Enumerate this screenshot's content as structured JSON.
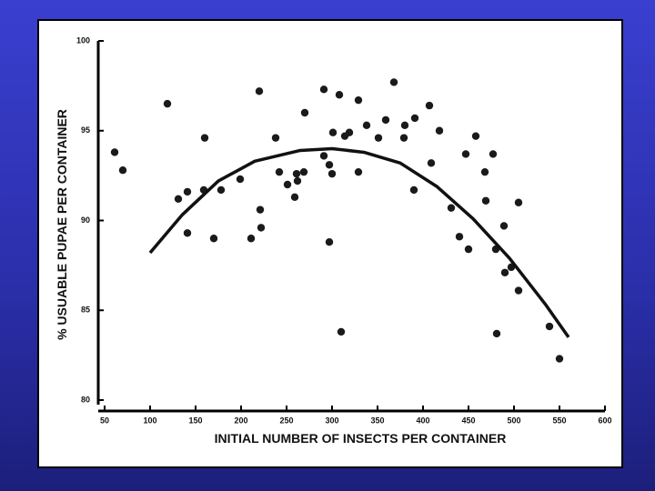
{
  "chart_data": {
    "type": "scatter",
    "x_label": "INITIAL NUMBER OF INSECTS PER CONTAINER",
    "y_label": "% USUABLE PUPAE PER CONTAINER",
    "xlim": [
      50,
      600
    ],
    "ylim": [
      80,
      100
    ],
    "xticks": [
      50,
      100,
      150,
      200,
      250,
      300,
      350,
      400,
      450,
      500,
      550,
      600
    ],
    "yticks": [
      80,
      85,
      90,
      95,
      100
    ],
    "series": [
      {
        "type": "scatter",
        "color": "#1a1a1a",
        "x": [
          61,
          70,
          119,
          131,
          141,
          141,
          159,
          160,
          170,
          178,
          199,
          211,
          220,
          221,
          222,
          238,
          242,
          251,
          259,
          261,
          262,
          269,
          270,
          291,
          291,
          297,
          300,
          297,
          301,
          308,
          310,
          314,
          319,
          329,
          329,
          338,
          351,
          359,
          368,
          379,
          380,
          391,
          390,
          407,
          409,
          418,
          431,
          440,
          447,
          450,
          458,
          468,
          469,
          477,
          480,
          481,
          489,
          490,
          497,
          505,
          505,
          539,
          550
        ],
        "values": [
          93.8,
          92.8,
          96.5,
          91.2,
          91.6,
          89.3,
          91.7,
          94.6,
          89.0,
          91.7,
          92.3,
          89.0,
          97.2,
          90.6,
          89.6,
          94.6,
          92.7,
          92.0,
          91.3,
          92.6,
          92.2,
          92.7,
          96.0,
          97.3,
          93.6,
          93.1,
          92.6,
          88.8,
          94.9,
          97.0,
          83.8,
          94.7,
          94.9,
          96.7,
          92.7,
          95.3,
          94.6,
          95.6,
          97.7,
          94.6,
          95.3,
          95.7,
          91.7,
          96.4,
          93.2,
          95.0,
          90.7,
          89.1,
          93.7,
          88.4,
          94.7,
          92.7,
          91.1,
          93.7,
          88.4,
          83.7,
          89.7,
          87.1,
          87.4,
          86.1,
          91.0,
          84.1,
          82.3
        ]
      },
      {
        "type": "line",
        "color": "#111111",
        "x": [
          100,
          135,
          175,
          215,
          265,
          300,
          335,
          375,
          415,
          455,
          495,
          535,
          560
        ],
        "values": [
          88.2,
          90.3,
          92.2,
          93.3,
          93.9,
          94.0,
          93.8,
          93.2,
          91.9,
          90.1,
          87.9,
          85.3,
          83.5
        ]
      }
    ]
  }
}
